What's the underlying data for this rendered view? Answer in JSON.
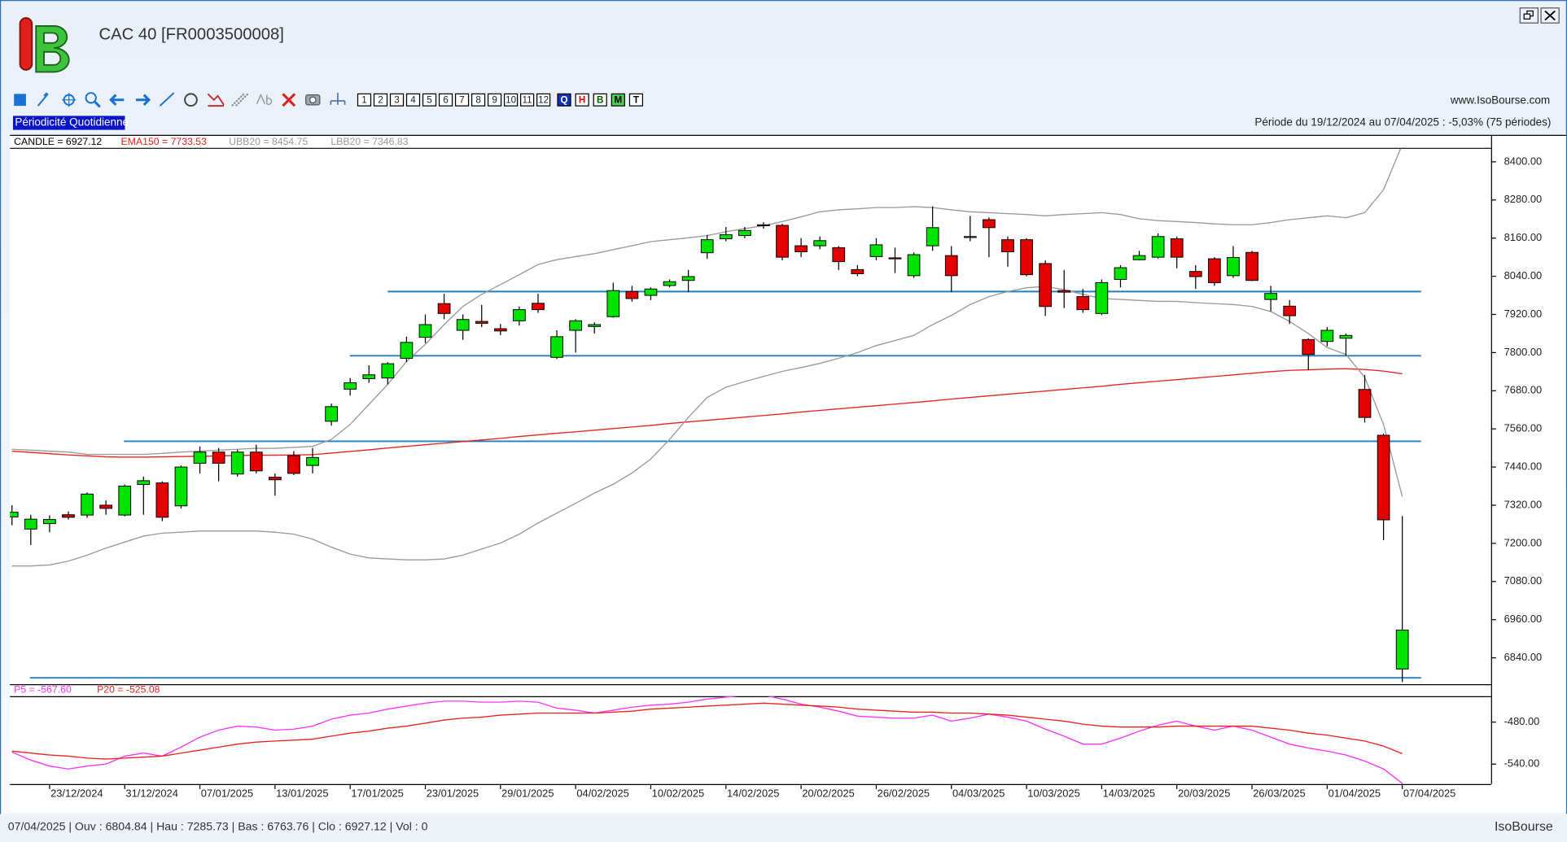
{
  "header": {
    "title": "CAC 40 [FR0003500008]",
    "site": "www.IsoBourse.com",
    "periodicity": "Périodicité Quotidienne",
    "period": "Période du 19/12/2024 au 07/04/2025 : -5,03% (75 périodes)",
    "numbers": [
      "1",
      "2",
      "3",
      "4",
      "5",
      "6",
      "7",
      "8",
      "9",
      "10",
      "11",
      "12"
    ],
    "modes": [
      "Q",
      "H",
      "B",
      "M",
      "T"
    ]
  },
  "status": {
    "text": "07/04/2025 | Ouv : 6804.84 | Hau : 7285.73 | Bas : 6763.76 | Clo : 6927.12 | Vol : 0",
    "brand": "IsoBourse"
  },
  "chart_data": [
    {
      "type": "candlestick",
      "legend": "CANDLE = 6927.12",
      "up_color": "#00e400",
      "down_color": "#e40000",
      "categories": [
        null,
        null,
        "23/12/2024",
        null,
        null,
        null,
        "31/12/2024",
        null,
        null,
        null,
        "07/01/2025",
        null,
        null,
        null,
        "13/01/2025",
        null,
        null,
        null,
        "17/01/2025",
        null,
        null,
        null,
        "23/01/2025",
        null,
        null,
        null,
        "29/01/2025",
        null,
        null,
        null,
        "04/02/2025",
        null,
        null,
        null,
        "10/02/2025",
        null,
        null,
        null,
        "14/02/2025",
        null,
        null,
        null,
        "20/02/2025",
        null,
        null,
        null,
        "26/02/2025",
        null,
        null,
        null,
        "04/03/2025",
        null,
        null,
        null,
        "10/03/2025",
        null,
        null,
        null,
        "14/03/2025",
        null,
        null,
        null,
        "20/03/2025",
        null,
        null,
        null,
        "26/03/2025",
        null,
        null,
        null,
        "01/04/2025",
        null,
        null,
        null,
        "07/04/2025"
      ],
      "open": [
        7283,
        7245,
        7262,
        7290,
        7289,
        7320,
        7289,
        7385,
        7390,
        7318,
        7452,
        7487,
        7418,
        7487,
        7408,
        7476,
        7445,
        7584,
        7685,
        7718,
        7720,
        7782,
        7848,
        7954,
        7870,
        7898,
        7875,
        7900,
        7955,
        7785,
        7870,
        7882,
        7913,
        7992,
        7980,
        8011,
        8027,
        8114,
        8158,
        8168,
        8200,
        8200,
        8136,
        8136,
        8130,
        8061,
        8102,
        8098,
        8042,
        8136,
        8105,
        8162,
        8218,
        8155,
        8155,
        8080,
        7995,
        7976,
        7923,
        8030,
        8092,
        8100,
        8158,
        8055,
        8095,
        8042,
        8115,
        7967,
        7946,
        7841,
        7835,
        7845,
        7684,
        7540,
        6804.84
      ],
      "high": [
        7320,
        7290,
        7288,
        7300,
        7360,
        7335,
        7385,
        7410,
        7395,
        7445,
        7505,
        7500,
        7495,
        7510,
        7420,
        7490,
        7500,
        7640,
        7720,
        7760,
        7770,
        7850,
        7920,
        7985,
        7920,
        7950,
        7890,
        7945,
        7985,
        7870,
        7905,
        7895,
        8020,
        8010,
        8005,
        8030,
        8060,
        8170,
        8195,
        8195,
        8210,
        8205,
        8160,
        8165,
        8135,
        8075,
        8160,
        8130,
        8115,
        8260,
        8135,
        8230,
        8225,
        8165,
        8160,
        8090,
        8060,
        8000,
        8030,
        8075,
        8120,
        8175,
        8165,
        8075,
        8100,
        8135,
        8120,
        8010,
        7965,
        7845,
        7880,
        7860,
        7730,
        7545,
        7285.73
      ],
      "low": [
        7257,
        7195,
        7235,
        7275,
        7280,
        7290,
        7285,
        7290,
        7270,
        7310,
        7420,
        7395,
        7410,
        7420,
        7350,
        7415,
        7420,
        7570,
        7665,
        7705,
        7700,
        7770,
        7830,
        7905,
        7840,
        7880,
        7855,
        7885,
        7925,
        7780,
        7800,
        7860,
        7910,
        7960,
        7965,
        8005,
        7990,
        8095,
        8150,
        8160,
        8190,
        8090,
        8100,
        8125,
        8060,
        8040,
        8090,
        8050,
        8035,
        8120,
        7990,
        8150,
        8100,
        8070,
        8040,
        7915,
        7940,
        7925,
        7918,
        8005,
        8090,
        8095,
        8065,
        8000,
        8010,
        8035,
        8025,
        7930,
        7890,
        7745,
        7820,
        7790,
        7580,
        7210,
        6763.76
      ],
      "close": [
        7298,
        7276,
        7275,
        7282,
        7355,
        7310,
        7380,
        7397,
        7282,
        7440,
        7487,
        7452,
        7487,
        7428,
        7400,
        7420,
        7470,
        7630,
        7705,
        7730,
        7765,
        7832,
        7888,
        7923,
        7904,
        7892,
        7868,
        7935,
        7935,
        7850,
        7900,
        7888,
        7995,
        7970,
        8000,
        8023,
        8039,
        8155,
        8171,
        8184,
        8202,
        8100,
        8117,
        8152,
        8086,
        8048,
        8139,
        8095,
        8108,
        8193,
        8042,
        8165,
        8193,
        8117,
        8045,
        7945,
        7990,
        7935,
        8020,
        8067,
        8105,
        8165,
        8100,
        8039,
        8020,
        8099,
        8027,
        7986,
        7916,
        7794,
        7870,
        7854,
        7596,
        7274,
        6927.12
      ],
      "series": [
        {
          "name": "EMA150 = 7733.53",
          "color": "#e8221b",
          "values": [
            7490,
            7486,
            7482,
            7478,
            7475,
            7472,
            7471,
            7471,
            7472,
            7473,
            7474,
            7475,
            7476,
            7477,
            7477,
            7478,
            7479,
            7484,
            7489,
            7494,
            7500,
            7505,
            7510,
            7515,
            7520,
            7525,
            7530,
            7536,
            7541,
            7546,
            7551,
            7556,
            7561,
            7566,
            7571,
            7577,
            7582,
            7587,
            7592,
            7597,
            7602,
            7607,
            7613,
            7618,
            7623,
            7628,
            7633,
            7638,
            7643,
            7648,
            7654,
            7659,
            7664,
            7669,
            7674,
            7679,
            7684,
            7689,
            7694,
            7700,
            7705,
            7710,
            7715,
            7720,
            7725,
            7730,
            7735,
            7740,
            7744,
            7746,
            7748,
            7749,
            7747,
            7742,
            7733.53
          ]
        },
        {
          "name": "UBB20 = 8454.75",
          "color": "#9a9a9a",
          "values": [
            7496,
            7493,
            7490,
            7487,
            7480,
            7480,
            7480,
            7480,
            7483,
            7487,
            7490,
            7493,
            7496,
            7499,
            7499,
            7502,
            7505,
            7527,
            7574,
            7637,
            7700,
            7772,
            7826,
            7888,
            7945,
            7983,
            8014,
            8045,
            8077,
            8092,
            8102,
            8111,
            8124,
            8136,
            8149,
            8155,
            8161,
            8168,
            8180,
            8190,
            8199,
            8212,
            8227,
            8243,
            8249,
            8252,
            8256,
            8256,
            8259,
            8256,
            8249,
            8243,
            8240,
            8237,
            8234,
            8230,
            8234,
            8237,
            8240,
            8234,
            8221,
            8215,
            8212,
            8209,
            8205,
            8202,
            8202,
            8209,
            8218,
            8224,
            8230,
            8224,
            8240,
            8312,
            8454.75
          ]
        },
        {
          "name": "LBB20 = 7346.83",
          "color": "#9a9a9a",
          "values": [
            7129,
            7129,
            7132,
            7144,
            7163,
            7185,
            7204,
            7223,
            7232,
            7235,
            7239,
            7239,
            7239,
            7239,
            7235,
            7229,
            7213,
            7188,
            7166,
            7154,
            7151,
            7148,
            7148,
            7151,
            7163,
            7182,
            7201,
            7229,
            7264,
            7295,
            7326,
            7358,
            7386,
            7421,
            7465,
            7527,
            7596,
            7659,
            7691,
            7709,
            7725,
            7741,
            7753,
            7766,
            7782,
            7800,
            7822,
            7838,
            7854,
            7888,
            7917,
            7951,
            7976,
            7992,
            8004,
            8008,
            7998,
            7983,
            7970,
            7967,
            7964,
            7961,
            7961,
            7957,
            7954,
            7951,
            7945,
            7929,
            7898,
            7860,
            7816,
            7794,
            7722,
            7574,
            7346.83
          ]
        }
      ],
      "hlines": [
        7992,
        7790,
        7521,
        6777
      ],
      "hline_color": "#1f7fc1",
      "ylim": [
        6757,
        8444
      ],
      "yticks": [
        {
          "value": 8400,
          "label": "8400.00"
        },
        {
          "value": 8280,
          "label": "8280.00"
        },
        {
          "value": 8160,
          "label": "8160.00"
        },
        {
          "value": 8040,
          "label": "8040.00"
        },
        {
          "value": 7920,
          "label": "7920.00"
        },
        {
          "value": 7800,
          "label": "7800.00"
        },
        {
          "value": 7680,
          "label": "7680.00"
        },
        {
          "value": 7560,
          "label": "7560.00"
        },
        {
          "value": 7440,
          "label": "7440.00"
        },
        {
          "value": 7320,
          "label": "7320.00"
        },
        {
          "value": 7200,
          "label": "7200.00"
        },
        {
          "value": 7080,
          "label": "7080.00"
        },
        {
          "value": 6960,
          "label": "6960.00"
        },
        {
          "value": 6840,
          "label": "6840.00"
        }
      ]
    },
    {
      "type": "line",
      "series": [
        {
          "name": "P5 = -567.60",
          "color": "#ff33ff",
          "values": [
            -522.9,
            -534.3,
            -542.9,
            -547.1,
            -542.9,
            -540.0,
            -528.6,
            -524.3,
            -528.6,
            -515.7,
            -501.4,
            -491.4,
            -485.7,
            -487.1,
            -491.4,
            -490.0,
            -485.7,
            -475.7,
            -470.0,
            -467.1,
            -461.4,
            -457.1,
            -452.9,
            -450.0,
            -450.0,
            -451.4,
            -451.4,
            -450.0,
            -451.4,
            -460.0,
            -462.9,
            -467.1,
            -462.9,
            -458.6,
            -455.7,
            -454.3,
            -451.4,
            -447.1,
            -444.3,
            -441.4,
            -441.4,
            -447.1,
            -454.3,
            -458.6,
            -464.3,
            -471.4,
            -472.9,
            -474.3,
            -474.3,
            -470.0,
            -478.6,
            -474.3,
            -468.6,
            -472.9,
            -478.6,
            -490.0,
            -500.0,
            -511.4,
            -511.4,
            -502.9,
            -492.9,
            -484.3,
            -478.6,
            -485.7,
            -491.4,
            -485.7,
            -491.4,
            -501.4,
            -511.4,
            -517.1,
            -521.4,
            -527.1,
            -535.7,
            -547.1,
            -567.6
          ]
        },
        {
          "name": "P20 = -525.08",
          "color": "#e8221b",
          "values": [
            -521.4,
            -524.3,
            -527.1,
            -528.6,
            -531.4,
            -532.9,
            -531.4,
            -530.0,
            -528.6,
            -524.3,
            -520.0,
            -515.7,
            -511.4,
            -508.6,
            -507.1,
            -505.7,
            -504.3,
            -500.0,
            -495.7,
            -492.9,
            -488.6,
            -485.7,
            -481.4,
            -477.1,
            -474.3,
            -472.9,
            -470.0,
            -468.6,
            -467.1,
            -467.1,
            -467.1,
            -467.1,
            -465.7,
            -464.3,
            -461.4,
            -460.0,
            -458.6,
            -457.1,
            -455.7,
            -454.3,
            -452.9,
            -454.3,
            -455.7,
            -457.1,
            -458.6,
            -461.4,
            -462.9,
            -464.3,
            -465.7,
            -465.7,
            -467.1,
            -467.1,
            -468.6,
            -470.0,
            -472.9,
            -475.7,
            -478.6,
            -482.9,
            -485.7,
            -487.1,
            -487.1,
            -487.1,
            -485.7,
            -485.7,
            -485.7,
            -485.7,
            -485.7,
            -488.6,
            -491.4,
            -495.7,
            -498.6,
            -502.9,
            -507.1,
            -514.3,
            -525.08
          ]
        }
      ],
      "ylim": [
        -568.6,
        -442.9
      ],
      "yticks": [
        {
          "value": -480,
          "label": "-480.00"
        },
        {
          "value": -540,
          "label": "-540.00"
        }
      ]
    }
  ]
}
